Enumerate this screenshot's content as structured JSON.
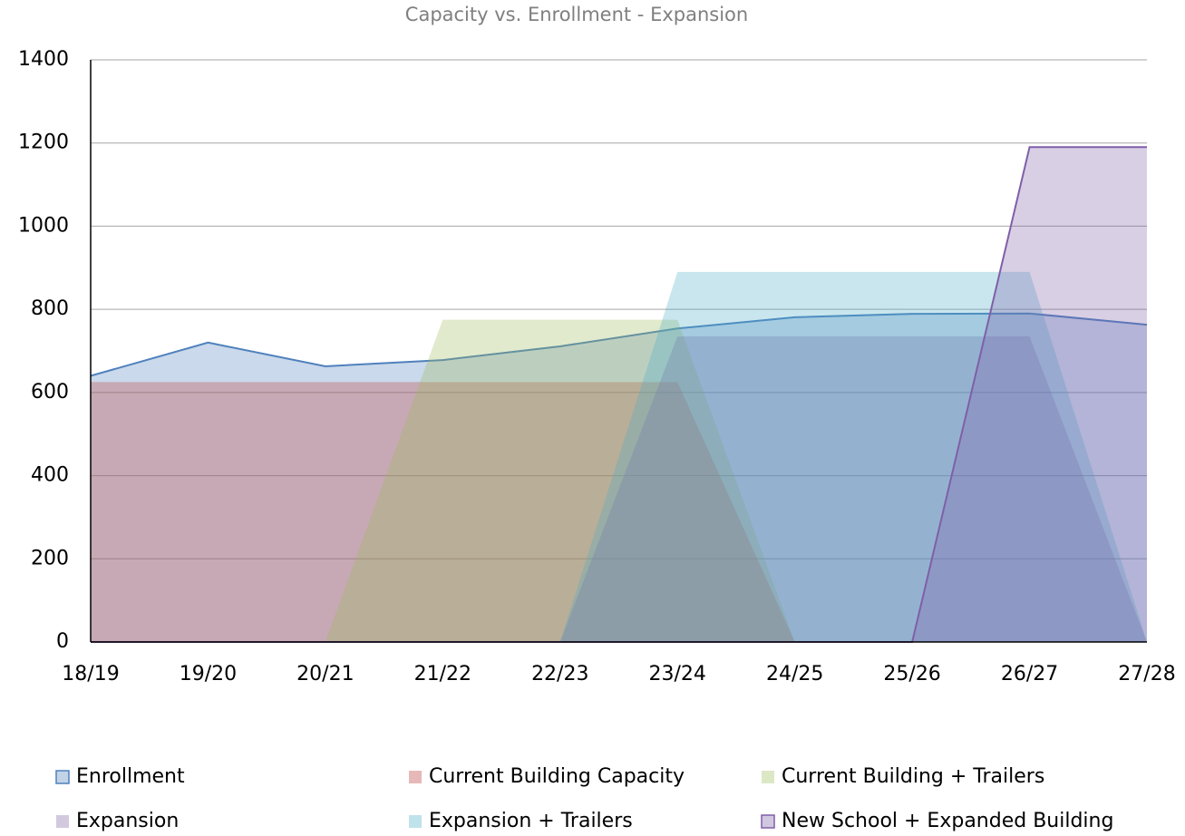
{
  "chart_data": {
    "type": "area",
    "title": "Capacity vs. Enrollment - Expansion",
    "categories": [
      "18/19",
      "19/20",
      "20/21",
      "21/22",
      "22/23",
      "23/24",
      "24/25",
      "25/26",
      "26/27",
      "27/28"
    ],
    "series": [
      {
        "name": "Enrollment",
        "color": "#4f81bd",
        "values": [
          640,
          720,
          663,
          678,
          711,
          754,
          781,
          789,
          790,
          763
        ]
      },
      {
        "name": "Current Building Capacity",
        "color": "#c0504d",
        "values": [
          625,
          625,
          625,
          625,
          625,
          625,
          0,
          0,
          0,
          0
        ]
      },
      {
        "name": "Current Building + Trailers",
        "color": "#9bbb59",
        "values": [
          0,
          0,
          0,
          775,
          775,
          775,
          0,
          0,
          0,
          0
        ]
      },
      {
        "name": "Expansion",
        "color": "#8064a2",
        "values": [
          0,
          0,
          0,
          0,
          0,
          735,
          735,
          735,
          735,
          0
        ]
      },
      {
        "name": "Expansion + Trailers",
        "color": "#4bacc6",
        "values": [
          0,
          0,
          0,
          0,
          0,
          890,
          890,
          890,
          890,
          0
        ]
      },
      {
        "name": "New School + Expanded Building",
        "color": "#7f5fa8",
        "values": [
          0,
          0,
          0,
          0,
          0,
          0,
          0,
          0,
          1190,
          1190
        ]
      }
    ],
    "ylim": [
      0,
      1400
    ],
    "yticks": [
      0,
      200,
      400,
      600,
      800,
      1000,
      1200,
      1400
    ],
    "grid": true
  }
}
